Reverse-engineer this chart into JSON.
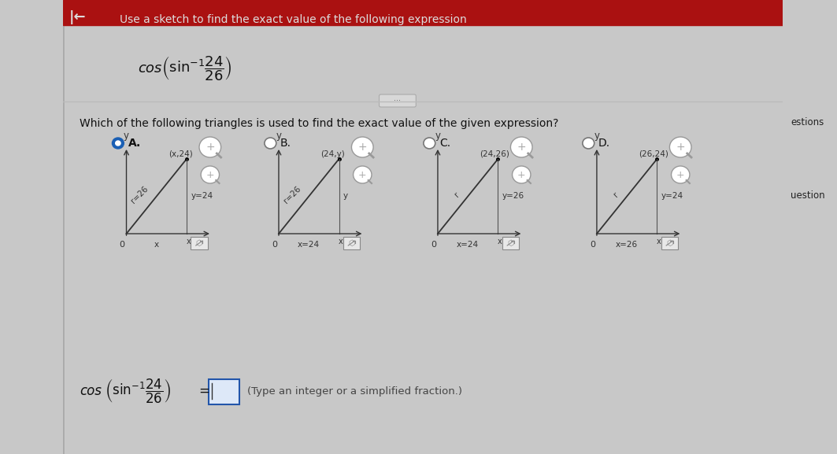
{
  "title_text": "Use a sketch to find the exact value of the following expression",
  "question_text": "Which of the following triangles is used to find the exact value of the given expression?",
  "answer_hint": "(Type an integer or a simplified fraction.)",
  "options": [
    "A.",
    "B.",
    "C.",
    "D."
  ],
  "selected": 0,
  "triangles": [
    {
      "point_label": "(x,24)",
      "r_label": "r=26",
      "y_label": "y=24",
      "x_label": "x",
      "foot_label": "x"
    },
    {
      "point_label": "(24,y)",
      "r_label": "r=26",
      "y_label": "y",
      "x_label": "x=24",
      "foot_label": "x"
    },
    {
      "point_label": "(24,26)",
      "r_label": "r",
      "y_label": "y=26",
      "x_label": "x=24",
      "foot_label": "x"
    },
    {
      "point_label": "(26,24)",
      "r_label": "r",
      "y_label": "y=24",
      "x_label": "x=26",
      "foot_label": "x"
    }
  ],
  "bg_outer": "#c8c8c8",
  "bg_left_panel": "#d4d0b8",
  "bg_main": "#e8e8e8",
  "red_bar": "#aa1111",
  "line_color": "#333333",
  "radio_fill": "#1a5fb4",
  "radio_empty": "#cccccc",
  "text_color": "#111111",
  "answer_box_fill": "#4a7fc0",
  "answer_box_edge": "#2255aa",
  "mag_glass_fill": "#ffffff",
  "mag_glass_edge": "#999999",
  "link_icon_fill": "#e8e8e8",
  "link_icon_edge": "#888888"
}
